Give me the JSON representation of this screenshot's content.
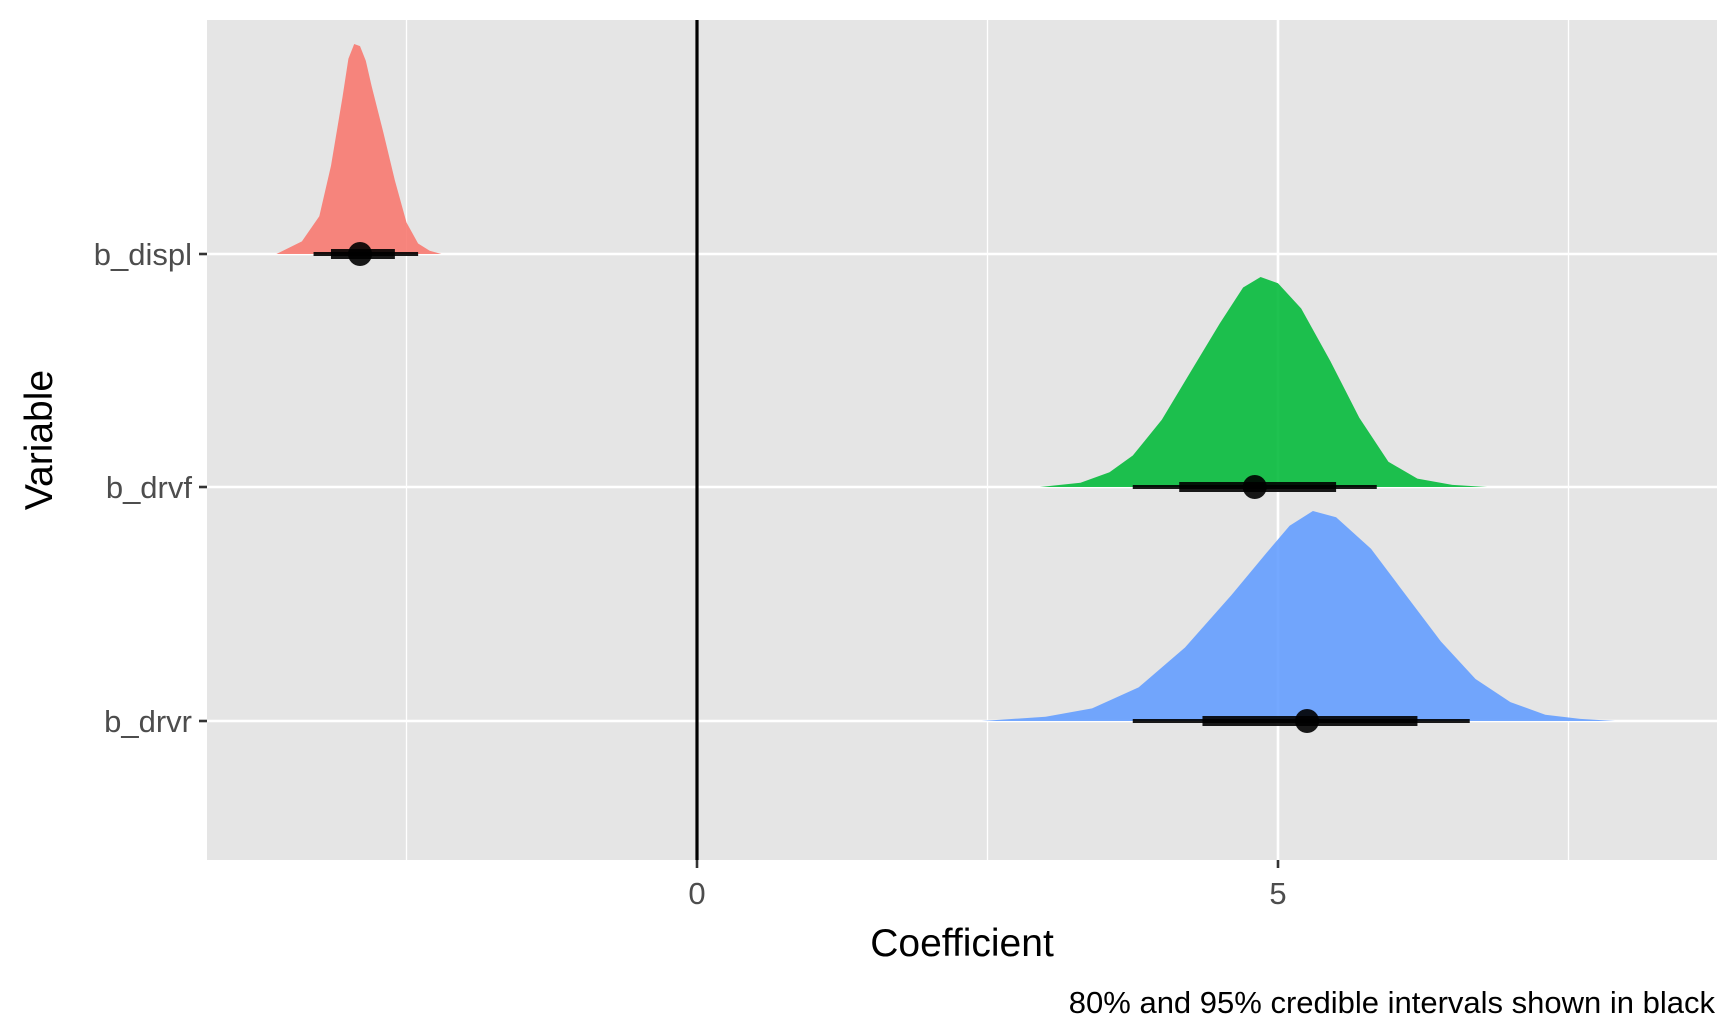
{
  "chart_data": {
    "type": "ridgeline",
    "xlabel": "Coefficient",
    "ylabel": "Variable",
    "caption": "80% and 95% credible intervals shown in black",
    "x_ticks": [
      0,
      5
    ],
    "xlim": [
      -4.2,
      8.8
    ],
    "reference_line_x": 0,
    "grid": true,
    "legend": "none",
    "colors": {
      "panel_background": "#e5e5e5",
      "grid_line": "#ffffff",
      "interval": "#000000"
    },
    "series": [
      {
        "name": "b_displ",
        "color": "#f8766d",
        "median": -2.9,
        "interval_80": [
          -3.15,
          -2.6
        ],
        "interval_95": [
          -3.3,
          -2.4
        ],
        "density_x": [
          -3.62,
          -3.4,
          -3.25,
          -3.15,
          -3.05,
          -3.0,
          -2.95,
          -2.9,
          -2.85,
          -2.8,
          -2.7,
          -2.6,
          -2.5,
          -2.4,
          -2.3,
          -2.2
        ],
        "density_y": [
          0.0,
          0.06,
          0.18,
          0.42,
          0.75,
          0.93,
          1.0,
          0.99,
          0.92,
          0.8,
          0.58,
          0.35,
          0.15,
          0.05,
          0.015,
          0.0
        ]
      },
      {
        "name": "b_drvf",
        "color": "#00ba38",
        "median": 4.8,
        "interval_80": [
          4.15,
          5.5
        ],
        "interval_95": [
          3.75,
          5.85
        ],
        "density_x": [
          2.95,
          3.3,
          3.55,
          3.75,
          4.0,
          4.25,
          4.5,
          4.7,
          4.85,
          5.0,
          5.2,
          5.45,
          5.7,
          5.95,
          6.2,
          6.5,
          6.8
        ],
        "density_y": [
          0.0,
          0.02,
          0.07,
          0.15,
          0.32,
          0.55,
          0.78,
          0.95,
          1.0,
          0.97,
          0.85,
          0.6,
          0.33,
          0.12,
          0.04,
          0.01,
          0.0
        ]
      },
      {
        "name": "b_drvr",
        "color": "#619cff",
        "median": 5.25,
        "interval_80": [
          4.35,
          6.2
        ],
        "interval_95": [
          3.75,
          6.65
        ],
        "density_x": [
          2.45,
          3.0,
          3.4,
          3.8,
          4.2,
          4.6,
          4.9,
          5.1,
          5.3,
          5.5,
          5.8,
          6.1,
          6.4,
          6.7,
          7.0,
          7.3,
          7.6,
          7.9
        ],
        "density_y": [
          0.0,
          0.02,
          0.06,
          0.16,
          0.35,
          0.6,
          0.8,
          0.93,
          1.0,
          0.97,
          0.82,
          0.6,
          0.38,
          0.2,
          0.09,
          0.03,
          0.01,
          0.0
        ]
      }
    ]
  }
}
